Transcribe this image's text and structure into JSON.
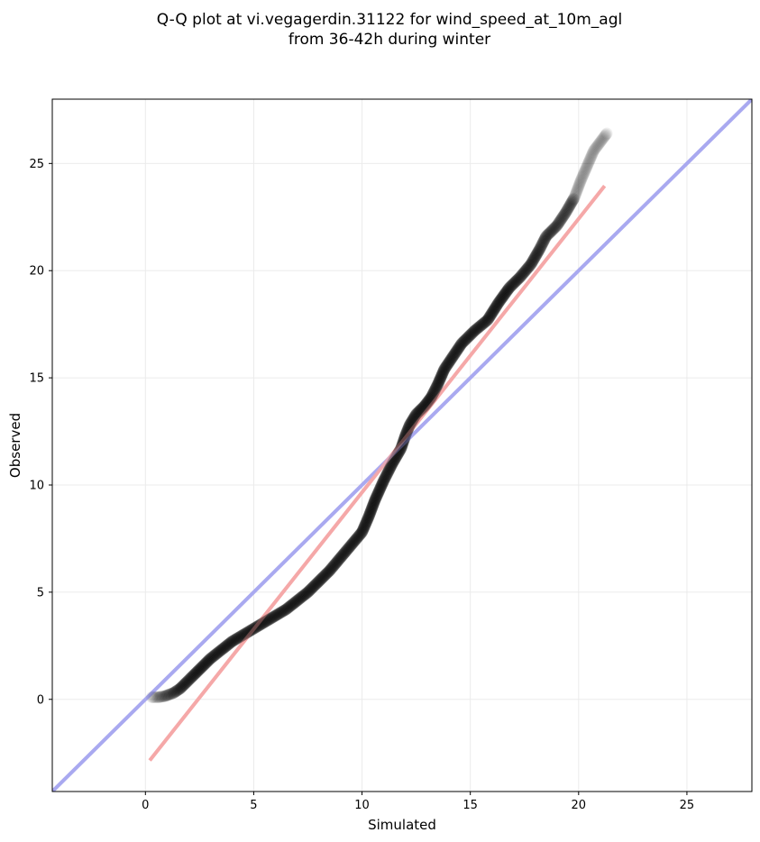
{
  "chart_data": {
    "type": "scatter",
    "title": "Q-Q plot at vi.vegagerdin.31122 for wind_speed_at_10m_agl",
    "subtitle": "from 36-42h during winter",
    "xlabel": "Simulated",
    "ylabel": "Observed",
    "xlim": [
      -4.3,
      28.0
    ],
    "ylim": [
      -4.3,
      28.0
    ],
    "xticks": [
      0,
      5,
      10,
      15,
      20,
      25
    ],
    "yticks": [
      0,
      5,
      10,
      15,
      20,
      25
    ],
    "grid": true,
    "colors": {
      "points": "#000000",
      "identity_line": "#aaaaf0",
      "fit_line": "#f5a8a8",
      "grid": "#ebebeb"
    },
    "quantile_curve": [
      [
        0.3,
        0.1
      ],
      [
        0.6,
        0.1
      ],
      [
        0.9,
        0.15
      ],
      [
        1.3,
        0.3
      ],
      [
        1.6,
        0.5
      ],
      [
        1.9,
        0.8
      ],
      [
        2.2,
        1.1
      ],
      [
        2.6,
        1.5
      ],
      [
        3.0,
        1.9
      ],
      [
        3.5,
        2.3
      ],
      [
        4.0,
        2.7
      ],
      [
        4.5,
        3.0
      ],
      [
        5.0,
        3.3
      ],
      [
        5.5,
        3.6
      ],
      [
        6.0,
        3.9
      ],
      [
        6.5,
        4.2
      ],
      [
        7.0,
        4.6
      ],
      [
        7.5,
        5.0
      ],
      [
        8.0,
        5.5
      ],
      [
        8.5,
        6.0
      ],
      [
        9.0,
        6.6
      ],
      [
        9.5,
        7.2
      ],
      [
        10.0,
        7.8
      ],
      [
        10.3,
        8.5
      ],
      [
        10.6,
        9.3
      ],
      [
        11.0,
        10.2
      ],
      [
        11.4,
        11.0
      ],
      [
        11.8,
        11.7
      ],
      [
        12.0,
        12.3
      ],
      [
        12.2,
        12.8
      ],
      [
        12.5,
        13.3
      ],
      [
        12.9,
        13.7
      ],
      [
        13.2,
        14.1
      ],
      [
        13.5,
        14.7
      ],
      [
        13.8,
        15.4
      ],
      [
        14.2,
        16.0
      ],
      [
        14.6,
        16.6
      ],
      [
        15.2,
        17.2
      ],
      [
        15.8,
        17.7
      ],
      [
        16.3,
        18.5
      ],
      [
        16.8,
        19.2
      ],
      [
        17.3,
        19.7
      ],
      [
        17.8,
        20.3
      ],
      [
        18.2,
        21.0
      ],
      [
        18.5,
        21.6
      ],
      [
        19.0,
        22.1
      ],
      [
        19.4,
        22.7
      ],
      [
        19.8,
        23.4
      ],
      [
        20.1,
        24.2
      ],
      [
        20.4,
        24.9
      ],
      [
        20.7,
        25.6
      ],
      [
        21.0,
        26.0
      ],
      [
        21.3,
        26.4
      ]
    ],
    "identity_line": {
      "from": [
        -4.3,
        -4.3
      ],
      "to": [
        28.0,
        28.0
      ]
    },
    "fit_line": {
      "from": [
        0.2,
        -2.85
      ],
      "to": [
        21.2,
        23.95
      ]
    }
  }
}
